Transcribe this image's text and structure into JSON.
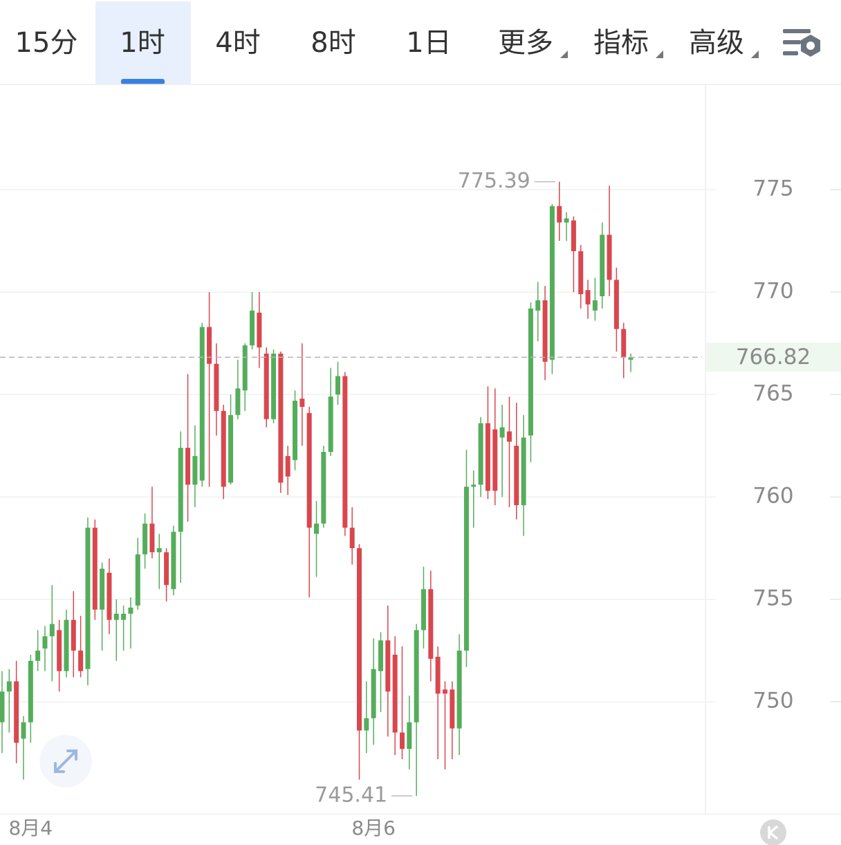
{
  "ui": {
    "tabs": [
      "15分",
      "1时",
      "4时",
      "8时",
      "1日",
      "更多",
      "指标",
      "高级"
    ],
    "active_tab": 1,
    "dropdown_tabs": [
      5,
      6,
      7
    ]
  },
  "chart_data": {
    "type": "candlestick",
    "categories": [
      null,
      null,
      null,
      null,
      "8月4",
      null,
      null,
      null,
      null,
      null,
      null,
      null,
      null,
      null,
      null,
      null,
      null,
      null,
      null,
      null,
      null,
      null,
      null,
      null,
      null,
      null,
      null,
      null,
      null,
      null,
      null,
      null,
      null,
      null,
      null,
      null,
      null,
      null,
      null,
      null,
      null,
      null,
      null,
      null,
      null,
      null,
      null,
      null,
      null,
      null,
      null,
      null,
      "8月6",
      null,
      null,
      null,
      null,
      null,
      null,
      null,
      null,
      null,
      null,
      null,
      null,
      null,
      null,
      null,
      null,
      null,
      null,
      null,
      null,
      null,
      null,
      null,
      null,
      null,
      null,
      null,
      null,
      null,
      null,
      null,
      null,
      null,
      null,
      null,
      null
    ],
    "open": [
      749,
      750.5,
      751,
      748.2,
      749,
      752,
      752.6,
      753.2,
      753.5,
      751.5,
      754,
      752.5,
      751.6,
      758.5,
      754.5,
      756.3,
      754,
      754,
      754.3,
      754.7,
      757.2,
      758.7,
      757.3,
      757.3,
      755.5,
      758.3,
      762.4,
      760.6,
      760.8,
      768.3,
      766.5,
      764.2,
      760.7,
      764,
      765.2,
      767.4,
      769,
      767,
      763.8,
      767,
      762,
      761.8,
      764.8,
      764.1,
      758.2,
      758.7,
      762.2,
      765,
      765.9,
      758.5,
      757.5,
      748.6,
      749.2,
      751.5,
      753,
      752.3,
      748.5,
      747.7,
      749,
      753.5,
      755.5,
      752.2,
      750.6,
      750.6,
      748.7,
      752.5,
      760.5,
      760.6,
      763.6,
      763.3,
      762.9,
      763.2,
      762.5,
      759.6,
      763,
      769.1,
      769.6,
      766.7,
      774.2,
      773.4,
      773.5,
      772,
      770.1,
      769.1,
      769.8,
      772.8,
      770.6,
      768.2,
      766.7
    ],
    "close": [
      750.5,
      751,
      748,
      749,
      752,
      752.5,
      753.2,
      753.8,
      751.5,
      754,
      752.5,
      751.5,
      758.5,
      754.5,
      756.5,
      754,
      754.3,
      754.3,
      754.6,
      757.2,
      758.7,
      757.3,
      757.5,
      755.7,
      758.3,
      762.4,
      760.6,
      762,
      768.3,
      766.5,
      764.2,
      760.5,
      764,
      765.3,
      767.4,
      769.1,
      767.3,
      763.8,
      767,
      760.7,
      761,
      764.7,
      764.4,
      758.5,
      758.7,
      762.2,
      764.9,
      765.9,
      758.5,
      757.5,
      748.6,
      749.2,
      751.6,
      753,
      750.5,
      748.5,
      747.7,
      749,
      753.5,
      755.5,
      752.1,
      750.4,
      750.4,
      748.7,
      752.5,
      760.5,
      760.6,
      763.6,
      760.3,
      760.3,
      763.4,
      762.7,
      759.6,
      762.9,
      769.2,
      769.6,
      766.6,
      774.2,
      773.4,
      773.6,
      772,
      769.9,
      769.4,
      769.6,
      772.8,
      770.6,
      768.2,
      766.8,
      766.82
    ],
    "high": [
      751.5,
      751.6,
      752,
      749.3,
      752.3,
      753.5,
      753.7,
      755.7,
      754,
      754.5,
      755.4,
      754.2,
      759,
      758.9,
      756.8,
      757,
      755,
      754.7,
      755.1,
      758,
      759.2,
      760.5,
      758.2,
      757.5,
      758.6,
      763.2,
      766,
      763.5,
      768.5,
      770,
      767.5,
      764.5,
      765,
      766.7,
      767.5,
      770,
      770,
      767.3,
      767.2,
      767.1,
      762.5,
      765.2,
      767.5,
      764.4,
      759.8,
      762.5,
      766.3,
      766.6,
      766.1,
      759.5,
      757.7,
      751,
      753.1,
      753.4,
      754.7,
      753.2,
      752.7,
      750.3,
      753.8,
      756.6,
      756.4,
      752.7,
      751,
      751,
      753.3,
      762.3,
      761.3,
      763.9,
      765.4,
      765.3,
      764.5,
      764.9,
      764.6,
      764,
      769.5,
      770.5,
      770.3,
      774.3,
      775.39,
      773.9,
      773.7,
      772.3,
      770.6,
      770.7,
      773.4,
      775.2,
      771.2,
      768.5,
      767
    ],
    "low": [
      747.5,
      748.5,
      747,
      746.2,
      748,
      751.5,
      751.5,
      751,
      750.5,
      751.2,
      751.2,
      751.2,
      750.8,
      754,
      752.5,
      753.3,
      752,
      752.5,
      752.6,
      754.5,
      756.5,
      757,
      755.5,
      754.9,
      755.2,
      755.8,
      758.8,
      759.5,
      760.5,
      760.5,
      763,
      759.9,
      760.6,
      763.8,
      764.2,
      767.2,
      766.3,
      763.4,
      763.6,
      760.2,
      760.1,
      761.3,
      762.5,
      755.1,
      756.1,
      758.5,
      762,
      764.5,
      758.1,
      756.7,
      746.2,
      747.5,
      747.9,
      749.5,
      748.3,
      747.4,
      747.2,
      746.7,
      745.41,
      752.6,
      751,
      747.2,
      746.7,
      747.2,
      747.4,
      751.7,
      758.5,
      760,
      759.9,
      759.6,
      760,
      759.5,
      758.9,
      758.1,
      761.7,
      767.6,
      765.7,
      766,
      772.5,
      772.5,
      770,
      769.2,
      768.7,
      768.6,
      769.2,
      769.8,
      767.1,
      765.8,
      766.1
    ],
    "up_color": "#55ad5b",
    "down_color": "#d9474e",
    "ylim": [
      744.53,
      780.14
    ],
    "yticks": [
      750,
      755,
      760,
      765,
      770,
      775
    ],
    "grid": true,
    "max_index": 78,
    "min_index": 58
  }
}
